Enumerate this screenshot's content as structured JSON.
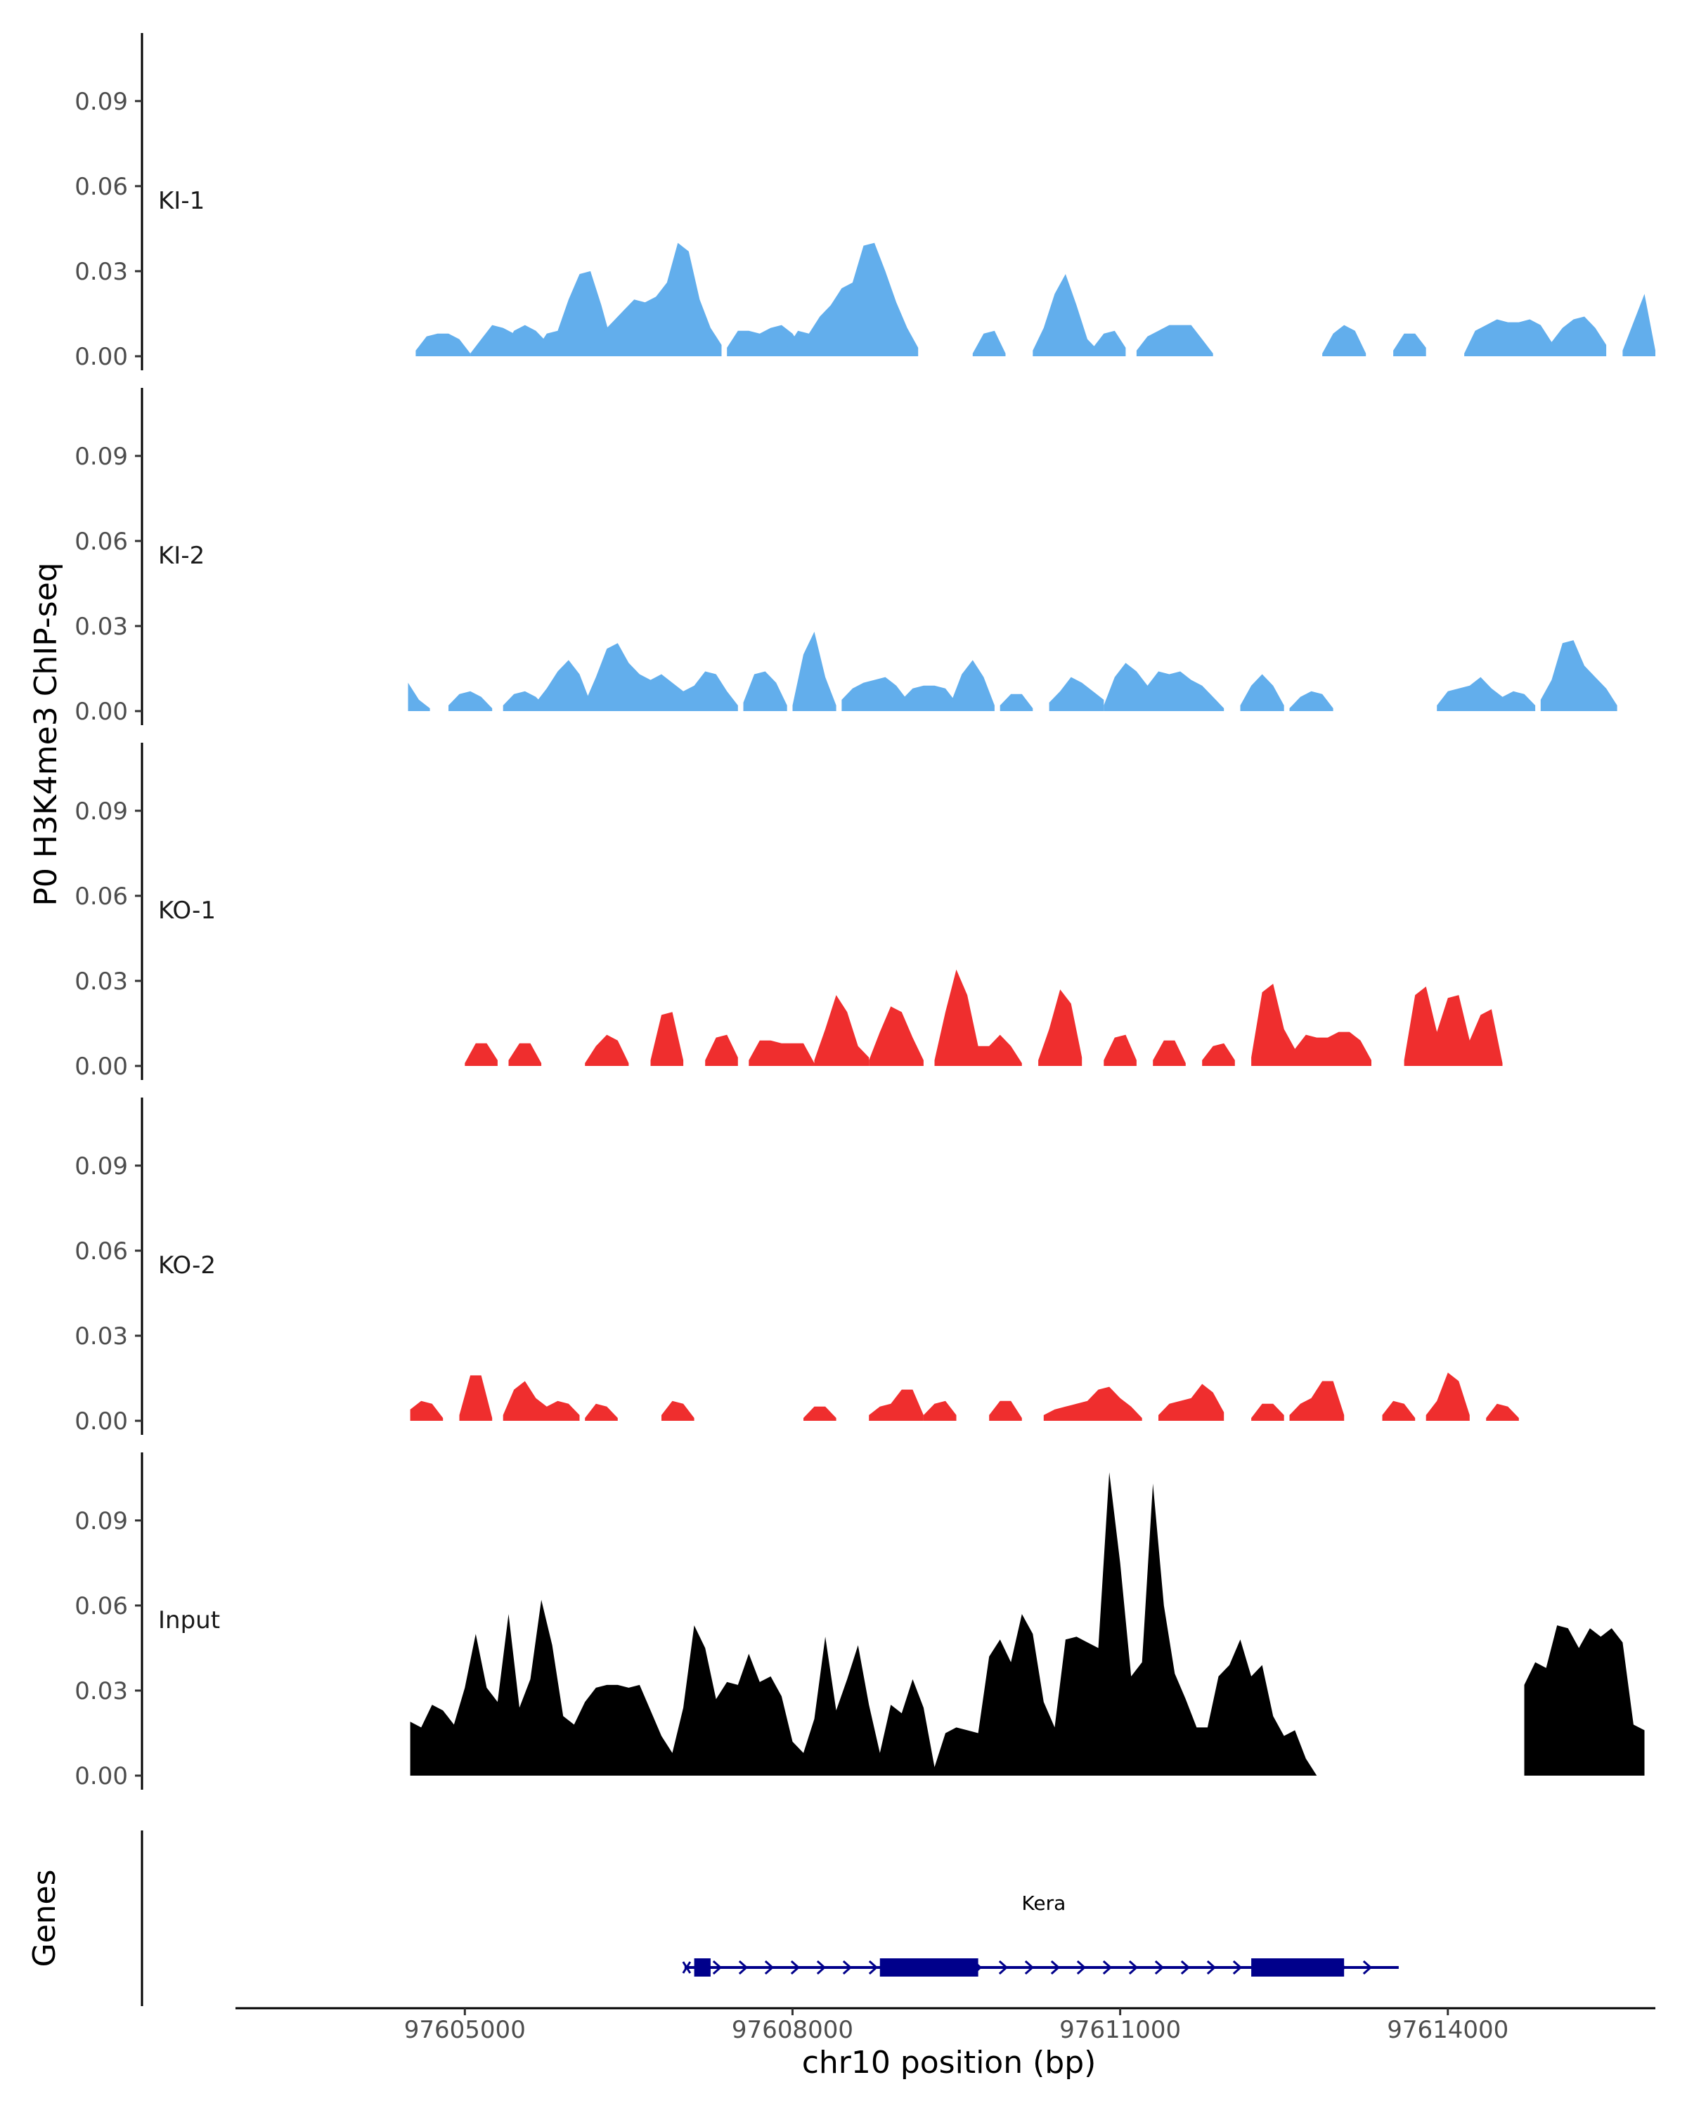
{
  "chart_data": {
    "type": "area",
    "ylabel": "P0 H3K4me3 ChIP-seq",
    "xlabel": "chr10 position (bp)",
    "xlim": [
      97602900,
      97615900
    ],
    "ylim": [
      0,
      0.114
    ],
    "y_ticks": [
      0,
      0.03,
      0.06,
      0.09
    ],
    "y_tick_labels": [
      "0.00",
      "0.03",
      "0.06",
      "0.09"
    ],
    "x_ticks": [
      97605000,
      97608000,
      97611000,
      97614000
    ],
    "x_tick_labels": [
      "97605000",
      "97608000",
      "97611000",
      "97614000"
    ],
    "x_start": 97604500,
    "x_end": 97615800,
    "x_step": 100,
    "tracks": [
      {
        "name": "KI-1",
        "color": "#62aeec",
        "segments": [
          {
            "start": 97604550,
            "values": [
              0.002,
              0.007,
              0.008,
              0.008,
              0.006,
              0.001
            ]
          },
          {
            "start": 97605050,
            "values": [
              0.001,
              0.006,
              0.011,
              0.01,
              0.008,
              0.001
            ]
          },
          {
            "start": 97605350,
            "values": [
              0.002,
              0.009,
              0.011,
              0.009,
              0.005,
              0.001
            ]
          },
          {
            "start": 97605650,
            "values": [
              0.002,
              0.008,
              0.009,
              0.02,
              0.029,
              0.03,
              0.018,
              0.004
            ]
          },
          {
            "start": 97606150,
            "values": [
              0.003,
              0.008,
              0.012,
              0.016,
              0.02,
              0.019,
              0.021,
              0.026,
              0.04,
              0.037,
              0.02,
              0.01,
              0.004
            ]
          },
          {
            "start": 97607400,
            "values": [
              0.003,
              0.009,
              0.009,
              0.008,
              0.01,
              0.011,
              0.008,
              0.002
            ]
          },
          {
            "start": 97607950,
            "values": [
              0.003,
              0.009,
              0.008,
              0.014,
              0.018,
              0.024,
              0.026,
              0.039,
              0.04,
              0.03,
              0.019,
              0.01,
              0.003
            ]
          },
          {
            "start": 97609650,
            "values": [
              0.001,
              0.008,
              0.009,
              0.001
            ]
          },
          {
            "start": 97610200,
            "values": [
              0.002,
              0.01,
              0.022,
              0.029,
              0.018,
              0.006,
              0.002
            ]
          },
          {
            "start": 97610750,
            "values": [
              0.003,
              0.008,
              0.009,
              0.003
            ]
          },
          {
            "start": 97611150,
            "values": [
              0.002,
              0.007,
              0.009,
              0.011,
              0.011,
              0.011,
              0.006,
              0.001
            ]
          },
          {
            "start": 97612850,
            "values": [
              0.001,
              0.008,
              0.011,
              0.009,
              0.001
            ]
          },
          {
            "start": 97613500,
            "values": [
              0.002,
              0.008,
              0.008,
              0.003
            ]
          },
          {
            "start": 97614150,
            "values": [
              0.001,
              0.009,
              0.011,
              0.013,
              0.012,
              0.012,
              0.013,
              0.011,
              0.005,
              0.01,
              0.013,
              0.014,
              0.01,
              0.004
            ]
          },
          {
            "start": 97615600,
            "values": [
              0.002,
              0.012,
              0.022,
              0.002
            ]
          }
        ]
      },
      {
        "name": "KI-2",
        "color": "#62aeec",
        "segments": [
          {
            "start": 97604480,
            "values": [
              0.01,
              0.004,
              0.001
            ]
          },
          {
            "start": 97604850,
            "values": [
              0.002,
              0.006,
              0.007,
              0.005,
              0.001
            ]
          },
          {
            "start": 97605350,
            "values": [
              0.002,
              0.006,
              0.007,
              0.005,
              0.001
            ]
          },
          {
            "start": 97605650,
            "values": [
              0.003,
              0.008,
              0.014,
              0.018,
              0.013,
              0.003
            ]
          },
          {
            "start": 97606100,
            "values": [
              0.003,
              0.012,
              0.022,
              0.024,
              0.017,
              0.013,
              0.011,
              0.013,
              0.01,
              0.007,
              0.009,
              0.014,
              0.013,
              0.007,
              0.002
            ]
          },
          {
            "start": 97607550,
            "values": [
              0.003,
              0.013,
              0.014,
              0.01,
              0.002
            ]
          },
          {
            "start": 97608000,
            "values": [
              0.002,
              0.02,
              0.028,
              0.012,
              0.002
            ]
          },
          {
            "start": 97608450,
            "values": [
              0.004,
              0.008,
              0.01,
              0.011,
              0.012,
              0.009,
              0.004
            ]
          },
          {
            "start": 97609000,
            "values": [
              0.004,
              0.008,
              0.009,
              0.009,
              0.008,
              0.003
            ]
          },
          {
            "start": 97609450,
            "values": [
              0.003,
              0.013,
              0.018,
              0.012,
              0.002
            ]
          },
          {
            "start": 97609900,
            "values": [
              0.002,
              0.006,
              0.006,
              0.001
            ]
          },
          {
            "start": 97610350,
            "values": [
              0.003,
              0.007,
              0.012,
              0.01,
              0.007,
              0.004
            ]
          },
          {
            "start": 97610850,
            "values": [
              0.002,
              0.012,
              0.017,
              0.014,
              0.009,
              0.014,
              0.013,
              0.014,
              0.011,
              0.009,
              0.005,
              0.001
            ]
          },
          {
            "start": 97612100,
            "values": [
              0.002,
              0.009,
              0.013,
              0.009,
              0.002
            ]
          },
          {
            "start": 97612550,
            "values": [
              0.001,
              0.005,
              0.007,
              0.006,
              0.001
            ]
          },
          {
            "start": 97613900,
            "values": [
              0.002,
              0.007,
              0.008,
              0.009,
              0.012,
              0.008,
              0.005,
              0.007,
              0.006,
              0.002
            ]
          },
          {
            "start": 97614850,
            "values": [
              0.004,
              0.011,
              0.024,
              0.025,
              0.016,
              0.012,
              0.008,
              0.002
            ]
          }
        ]
      },
      {
        "name": "KO-1",
        "color": "#ef2e2e",
        "segments": [
          {
            "start": 97605000,
            "values": [
              0.001,
              0.008,
              0.008,
              0.002
            ]
          },
          {
            "start": 97605400,
            "values": [
              0.002,
              0.008,
              0.008,
              0.001
            ]
          },
          {
            "start": 97606100,
            "values": [
              0.001,
              0.007,
              0.011,
              0.009,
              0.001
            ]
          },
          {
            "start": 97606700,
            "values": [
              0.002,
              0.018,
              0.019,
              0.002
            ]
          },
          {
            "start": 97607200,
            "values": [
              0.002,
              0.01,
              0.011,
              0.003
            ]
          },
          {
            "start": 97607600,
            "values": [
              0.002,
              0.009,
              0.009,
              0.008,
              0.008,
              0.008,
              0.001
            ]
          },
          {
            "start": 97608200,
            "values": [
              0.002,
              0.013,
              0.025,
              0.019,
              0.007,
              0.003
            ]
          },
          {
            "start": 97608700,
            "values": [
              0.002,
              0.012,
              0.021,
              0.019,
              0.01,
              0.002
            ]
          },
          {
            "start": 97609300,
            "values": [
              0.002,
              0.019,
              0.034,
              0.025,
              0.007,
              0.007,
              0.011,
              0.007,
              0.001
            ]
          },
          {
            "start": 97610250,
            "values": [
              0.002,
              0.013,
              0.027,
              0.022,
              0.003
            ]
          },
          {
            "start": 97610850,
            "values": [
              0.002,
              0.01,
              0.011,
              0.002
            ]
          },
          {
            "start": 97611300,
            "values": [
              0.002,
              0.009,
              0.009,
              0.001
            ]
          },
          {
            "start": 97611750,
            "values": [
              0.002,
              0.007,
              0.008,
              0.002
            ]
          },
          {
            "start": 97612200,
            "values": [
              0.003,
              0.026,
              0.029,
              0.013,
              0.006,
              0.011,
              0.01,
              0.01,
              0.012,
              0.012,
              0.009,
              0.002
            ]
          },
          {
            "start": 97613600,
            "values": [
              0.002,
              0.025,
              0.028,
              0.012,
              0.024,
              0.025,
              0.009,
              0.018,
              0.02,
              0.001
            ]
          }
        ]
      },
      {
        "name": "KO-2",
        "color": "#ef2e2e",
        "segments": [
          {
            "start": 97604500,
            "values": [
              0.004,
              0.007,
              0.006,
              0.001
            ]
          },
          {
            "start": 97604950,
            "values": [
              0.002,
              0.016,
              0.016,
              0.001
            ]
          },
          {
            "start": 97605350,
            "values": [
              0.002,
              0.011,
              0.014,
              0.008,
              0.005,
              0.007,
              0.006,
              0.002
            ]
          },
          {
            "start": 97606100,
            "values": [
              0.001,
              0.006,
              0.005,
              0.001
            ]
          },
          {
            "start": 97606800,
            "values": [
              0.002,
              0.007,
              0.006,
              0.001
            ]
          },
          {
            "start": 97608100,
            "values": [
              0.001,
              0.005,
              0.005,
              0.001
            ]
          },
          {
            "start": 97608700,
            "values": [
              0.002,
              0.005,
              0.006,
              0.011,
              0.011,
              0.002
            ]
          },
          {
            "start": 97609200,
            "values": [
              0.002,
              0.006,
              0.007,
              0.002
            ]
          },
          {
            "start": 97609800,
            "values": [
              0.002,
              0.007,
              0.007,
              0.001
            ]
          },
          {
            "start": 97610300,
            "values": [
              0.002,
              0.004,
              0.005,
              0.006,
              0.007,
              0.011,
              0.012,
              0.008,
              0.005,
              0.001
            ]
          },
          {
            "start": 97611350,
            "values": [
              0.002,
              0.006,
              0.007,
              0.008,
              0.013,
              0.01,
              0.003
            ]
          },
          {
            "start": 97612200,
            "values": [
              0.001,
              0.006,
              0.006,
              0.002
            ]
          },
          {
            "start": 97612550,
            "values": [
              0.002,
              0.006,
              0.008,
              0.014,
              0.014,
              0.002
            ]
          },
          {
            "start": 97613400,
            "values": [
              0.002,
              0.007,
              0.006,
              0.001
            ]
          },
          {
            "start": 97613800,
            "values": [
              0.002,
              0.007,
              0.017,
              0.014,
              0.002
            ]
          },
          {
            "start": 97614350,
            "values": [
              0.001,
              0.006,
              0.005,
              0.001
            ]
          }
        ]
      },
      {
        "name": "Input",
        "color": "#000000",
        "segments": [
          {
            "start": 97604500,
            "values": [
              0.019,
              0.017,
              0.025,
              0.023,
              0.018,
              0.031,
              0.05,
              0.031,
              0.026,
              0.057,
              0.024,
              0.034,
              0.062,
              0.046,
              0.021,
              0.018,
              0.026,
              0.031,
              0.032,
              0.032,
              0.031,
              0.032,
              0.023,
              0.014,
              0.008,
              0.024,
              0.053,
              0.045,
              0.027,
              0.033,
              0.032,
              0.043,
              0.033,
              0.035,
              0.028,
              0.012,
              0.008,
              0.02,
              0.049,
              0.023,
              0.034,
              0.046,
              0.025,
              0.008,
              0.025,
              0.022,
              0.034,
              0.024,
              0.003,
              0.015,
              0.017,
              0.016,
              0.015,
              0.042,
              0.048,
              0.04,
              0.057,
              0.05,
              0.026,
              0.017,
              0.048,
              0.049,
              0.047,
              0.045,
              0.107,
              0.075,
              0.035,
              0.04,
              0.103,
              0.06,
              0.036,
              0.027,
              0.017,
              0.017,
              0.035,
              0.039,
              0.048,
              0.035,
              0.039,
              0.021,
              0.014,
              0.016,
              0.006,
              0.0
            ]
          },
          {
            "start": 97614700,
            "values": [
              0.032,
              0.04,
              0.038,
              0.053,
              0.052,
              0.045,
              0.052,
              0.049,
              0.052,
              0.047,
              0.018,
              0.016
            ]
          }
        ]
      }
    ],
    "genes": {
      "track_label": "Genes",
      "gene_name": "Kera",
      "strand": "+",
      "start": 97607050,
      "end": 97613550,
      "thin_start": 97607050,
      "thin_end": 97607100,
      "exons": [
        [
          97607100,
          97607250
        ],
        [
          97608800,
          97609700
        ],
        [
          97612200,
          97613050
        ]
      ],
      "color": "#00008b"
    }
  }
}
